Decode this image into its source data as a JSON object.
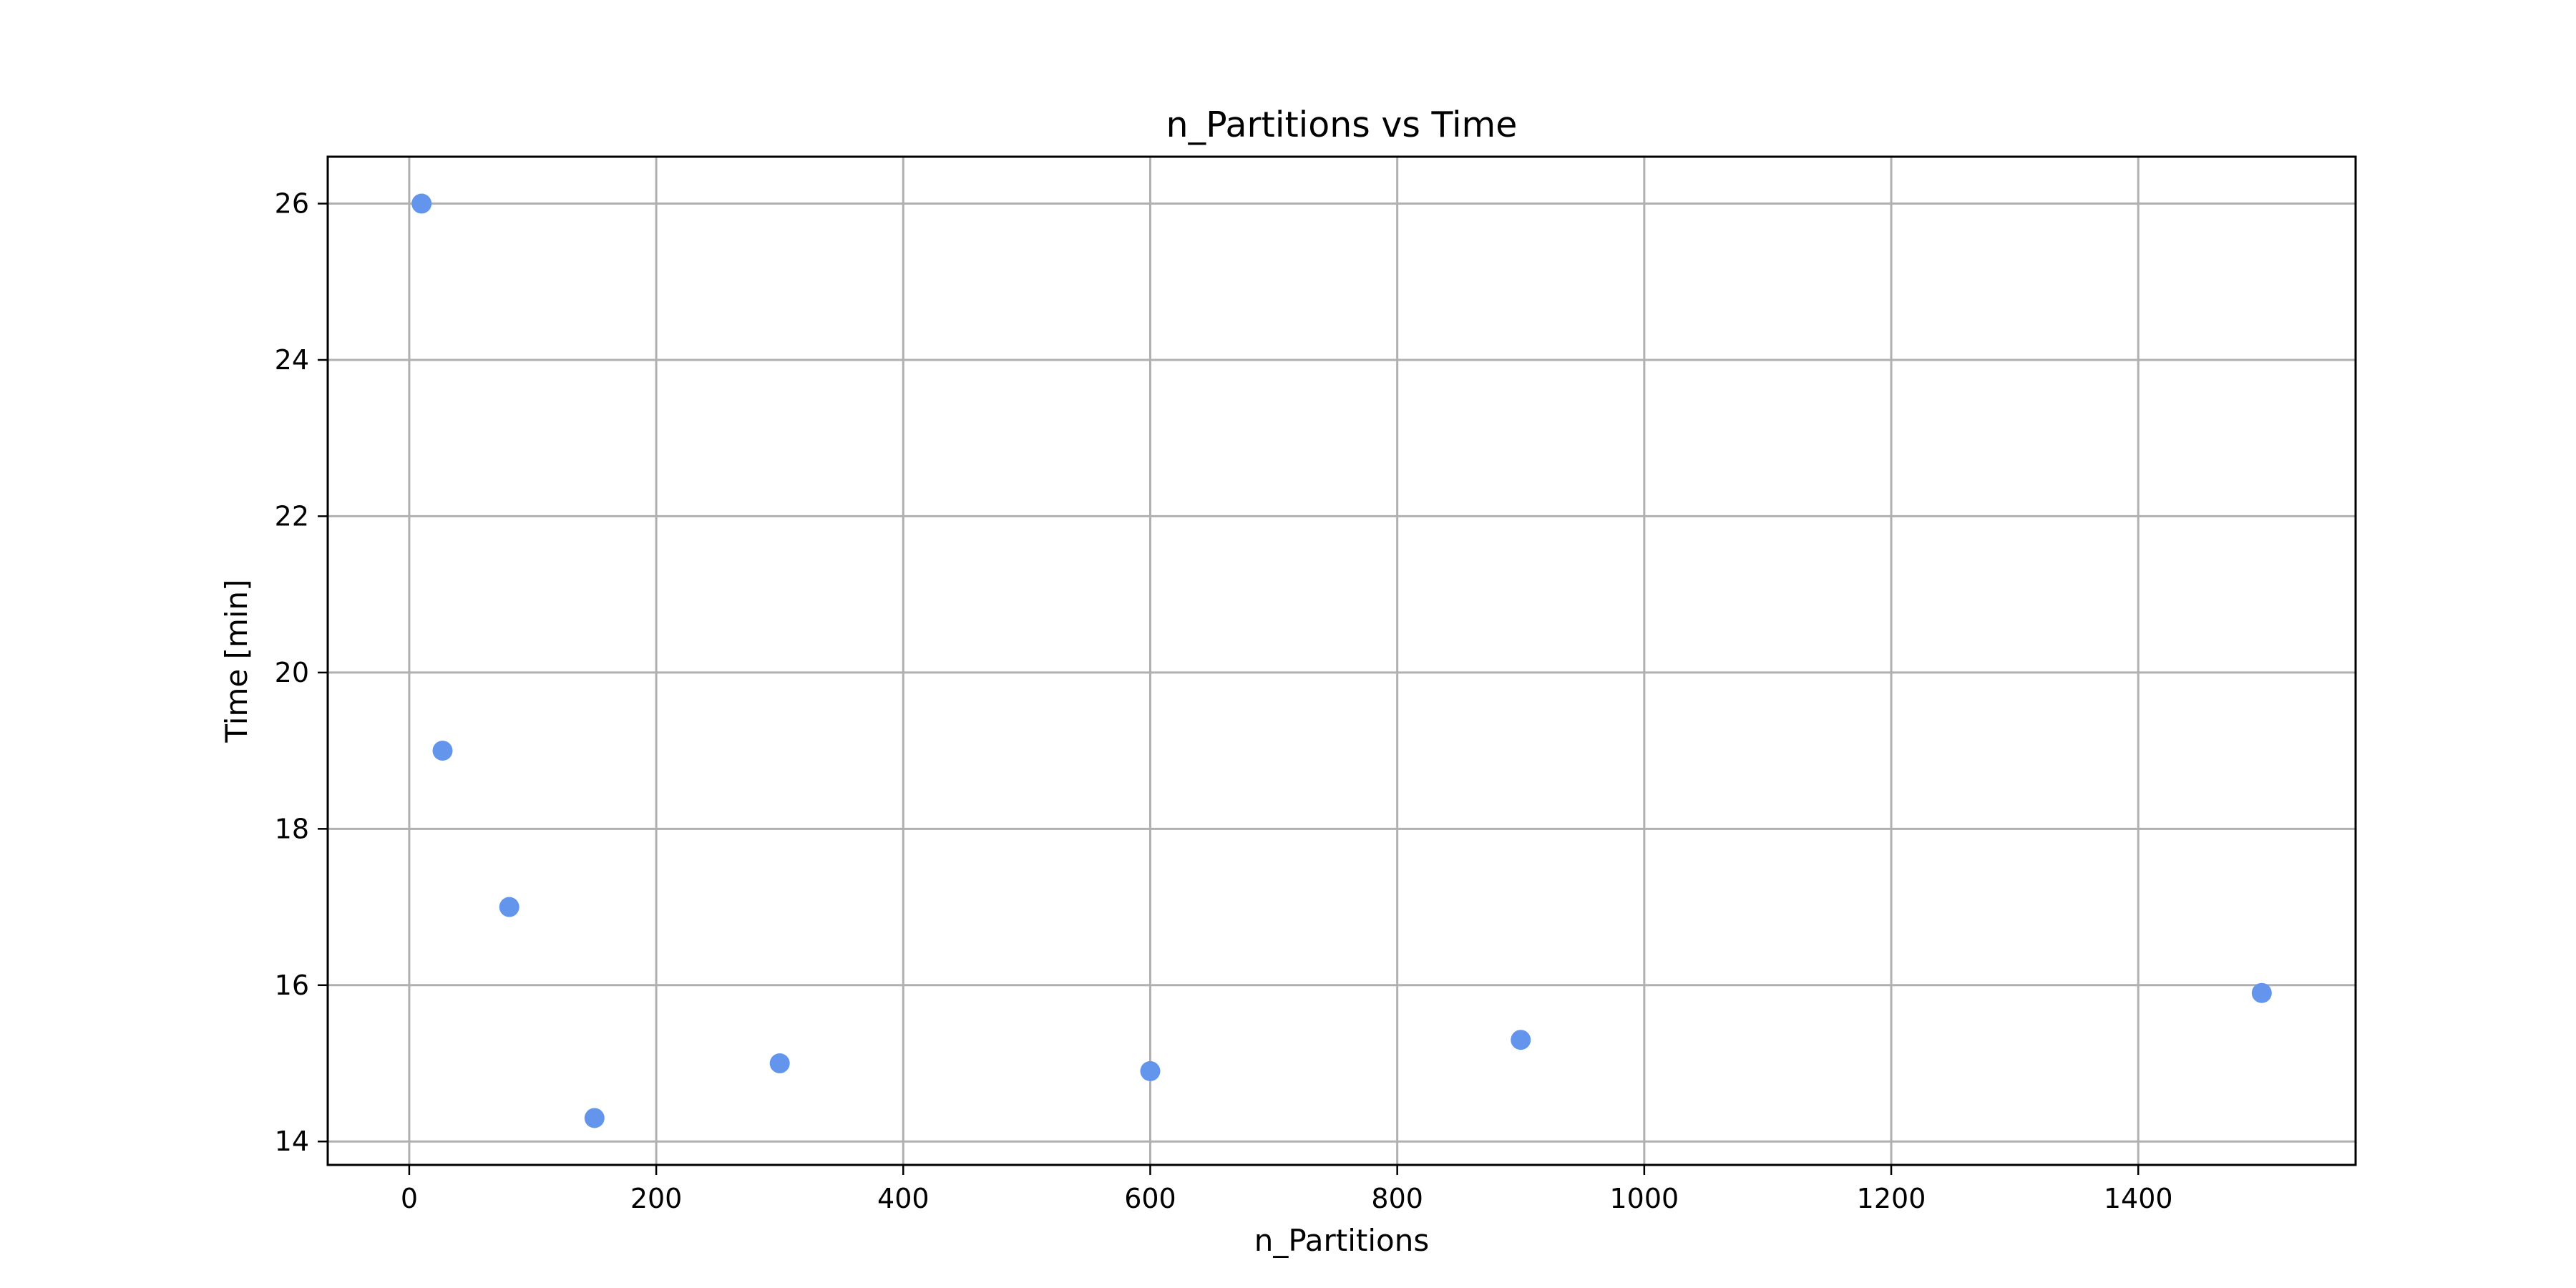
{
  "chart_data": {
    "type": "scatter",
    "title": "n_Partitions vs Time",
    "xlabel": "n_Partitions",
    "ylabel": "Time [min]",
    "x": [
      10,
      27,
      81,
      150,
      300,
      600,
      900,
      1500
    ],
    "y": [
      26.0,
      19.0,
      17.0,
      14.3,
      15.0,
      14.9,
      15.3,
      15.9
    ],
    "xlim": [
      -66,
      1576
    ],
    "ylim": [
      13.7,
      26.6
    ],
    "xticks": [
      0,
      200,
      400,
      600,
      800,
      1000,
      1200,
      1400
    ],
    "yticks": [
      14,
      16,
      18,
      20,
      22,
      24,
      26
    ],
    "xtick_labels": [
      "0",
      "200",
      "400",
      "600",
      "800",
      "1000",
      "1200",
      "1400"
    ],
    "ytick_labels": [
      "14",
      "16",
      "18",
      "20",
      "22",
      "24",
      "26"
    ],
    "grid": true,
    "marker_color": "#6495ed"
  }
}
